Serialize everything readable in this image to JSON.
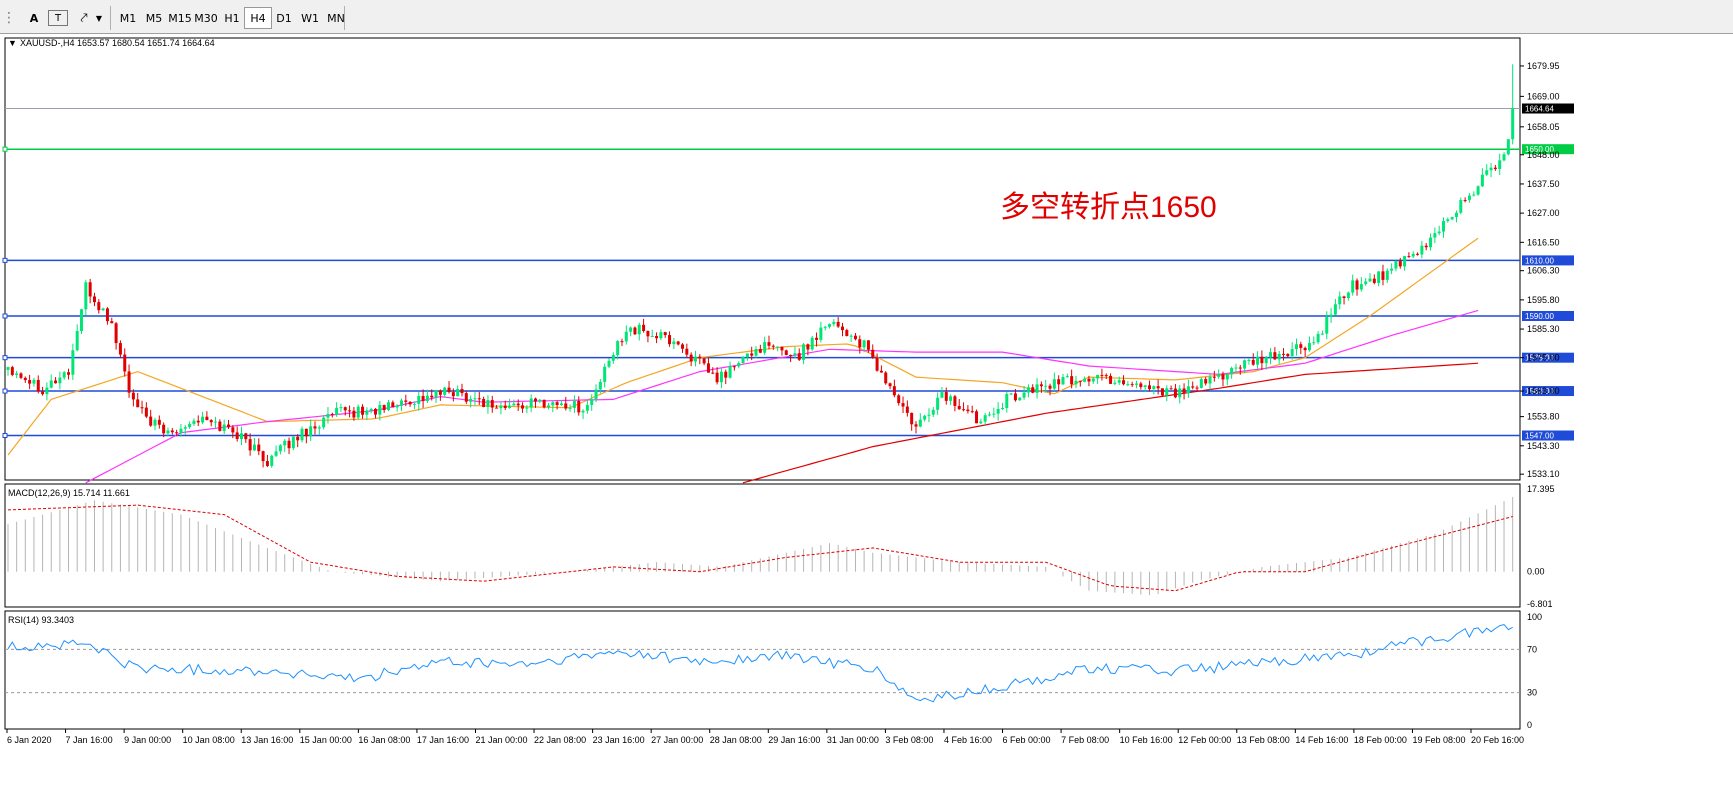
{
  "toolbar": {
    "icons": [
      "grip-icon",
      "text-tool-icon",
      "text-label-icon",
      "arrows-tool-icon",
      "dropdown-icon"
    ],
    "text_tool_label": "A",
    "label_tool_label": "T",
    "timeframes": [
      "M1",
      "M5",
      "M15",
      "M30",
      "H1",
      "H4",
      "D1",
      "W1",
      "MN"
    ],
    "active_timeframe": "H4"
  },
  "header": {
    "symbol_info": "XAUUSD-,H4  1653.57 1680.54 1651.74 1664.64"
  },
  "annotation": "多空转折点1650",
  "colors": {
    "bull": "#00e676",
    "bear": "#e00000",
    "level_line": "#1f4bd8",
    "pivot_line": "#00cc44",
    "ma_fast": "#f5a623",
    "ma_mid": "#ff33ff",
    "ma_slow": "#e00000",
    "macd_signal": "#e00000",
    "rsi_line": "#1e90ff"
  },
  "price_axis": {
    "ticks": [
      "1679.95",
      "1669.00",
      "1658.05",
      "1648.00",
      "1637.50",
      "1627.00",
      "1616.50",
      "1606.30",
      "1595.80",
      "1585.30",
      "1575.00",
      "1563.00",
      "1553.80",
      "1543.30",
      "1533.10"
    ],
    "current_price": "1664.64",
    "level_tags": [
      "1650.00",
      "1610.00",
      "1590.00",
      "1575.00",
      "1563.00",
      "1547.00"
    ]
  },
  "time_axis": {
    "labels": [
      "6 Jan 2020",
      "7 Jan 16:00",
      "9 Jan 00:00",
      "10 Jan 08:00",
      "13 Jan 16:00",
      "15 Jan 00:00",
      "16 Jan 08:00",
      "17 Jan 16:00",
      "21 Jan 00:00",
      "22 Jan 08:00",
      "23 Jan 16:00",
      "27 Jan 00:00",
      "28 Jan 08:00",
      "29 Jan 16:00",
      "31 Jan 00:00",
      "3 Feb 08:00",
      "4 Feb 16:00",
      "6 Feb 00:00",
      "7 Feb 08:00",
      "10 Feb 16:00",
      "12 Feb 00:00",
      "13 Feb 08:00",
      "14 Feb 16:00",
      "18 Feb 00:00",
      "19 Feb 08:00",
      "20 Feb 16:00"
    ]
  },
  "macd": {
    "label": "MACD(12,26,9) 15.714 11.661",
    "ticks": [
      "17.395",
      "0.00",
      "-6.801"
    ]
  },
  "rsi": {
    "label": "RSI(14) 93.3403",
    "ticks": [
      "100",
      "70",
      "30",
      "0"
    ]
  },
  "chart_data": {
    "type": "candlestick",
    "symbol": "XAUUSD-",
    "timeframe": "H4",
    "ylim": [
      1531,
      1690
    ],
    "horizontal_levels": [
      1650,
      1610,
      1590,
      1575,
      1563,
      1547
    ],
    "waypoints": [
      [
        0,
        1572
      ],
      [
        8,
        1564
      ],
      [
        14,
        1570
      ],
      [
        18,
        1600
      ],
      [
        24,
        1587
      ],
      [
        29,
        1558
      ],
      [
        36,
        1548
      ],
      [
        44,
        1553
      ],
      [
        52,
        1549
      ],
      [
        60,
        1538
      ],
      [
        68,
        1548
      ],
      [
        76,
        1555
      ],
      [
        85,
        1556
      ],
      [
        94,
        1560
      ],
      [
        103,
        1563
      ],
      [
        114,
        1557
      ],
      [
        124,
        1559
      ],
      [
        134,
        1557
      ],
      [
        143,
        1586
      ],
      [
        154,
        1581
      ],
      [
        164,
        1567
      ],
      [
        174,
        1579
      ],
      [
        183,
        1576
      ],
      [
        190,
        1589
      ],
      [
        198,
        1579
      ],
      [
        210,
        1549
      ],
      [
        216,
        1562
      ],
      [
        224,
        1553
      ],
      [
        232,
        1561
      ],
      [
        242,
        1566
      ],
      [
        252,
        1568
      ],
      [
        260,
        1566
      ],
      [
        272,
        1562
      ],
      [
        282,
        1570
      ],
      [
        290,
        1574
      ],
      [
        302,
        1580
      ],
      [
        310,
        1600
      ],
      [
        318,
        1605
      ],
      [
        326,
        1612
      ],
      [
        334,
        1627
      ],
      [
        340,
        1637
      ],
      [
        346,
        1649
      ],
      [
        347,
        1653.57
      ],
      [
        348,
        1664.64
      ]
    ],
    "moving_averages": [
      {
        "color": "ma_fast",
        "values": [
          [
            0,
            1540
          ],
          [
            10,
            1560
          ],
          [
            30,
            1570
          ],
          [
            45,
            1561
          ],
          [
            60,
            1552
          ],
          [
            85,
            1553
          ],
          [
            100,
            1558
          ],
          [
            130,
            1557
          ],
          [
            143,
            1566
          ],
          [
            160,
            1575
          ],
          [
            180,
            1579
          ],
          [
            195,
            1580
          ],
          [
            210,
            1568
          ],
          [
            230,
            1566
          ],
          [
            242,
            1562
          ],
          [
            250,
            1568
          ],
          [
            270,
            1567
          ],
          [
            288,
            1570
          ],
          [
            300,
            1575
          ],
          [
            315,
            1590
          ],
          [
            340,
            1618
          ]
        ]
      },
      {
        "color": "ma_mid",
        "values": [
          [
            18,
            1530
          ],
          [
            40,
            1548
          ],
          [
            60,
            1552
          ],
          [
            85,
            1556
          ],
          [
            100,
            1561
          ],
          [
            110,
            1559
          ],
          [
            140,
            1560
          ],
          [
            160,
            1570
          ],
          [
            190,
            1578
          ],
          [
            210,
            1577
          ],
          [
            230,
            1577
          ],
          [
            250,
            1572
          ],
          [
            280,
            1569
          ],
          [
            300,
            1573
          ],
          [
            320,
            1583
          ],
          [
            340,
            1592
          ]
        ]
      },
      {
        "color": "ma_slow",
        "values": [
          [
            170,
            1530
          ],
          [
            200,
            1543
          ],
          [
            240,
            1555
          ],
          [
            280,
            1564
          ],
          [
            300,
            1569
          ],
          [
            320,
            1571
          ],
          [
            340,
            1573
          ]
        ]
      }
    ]
  }
}
